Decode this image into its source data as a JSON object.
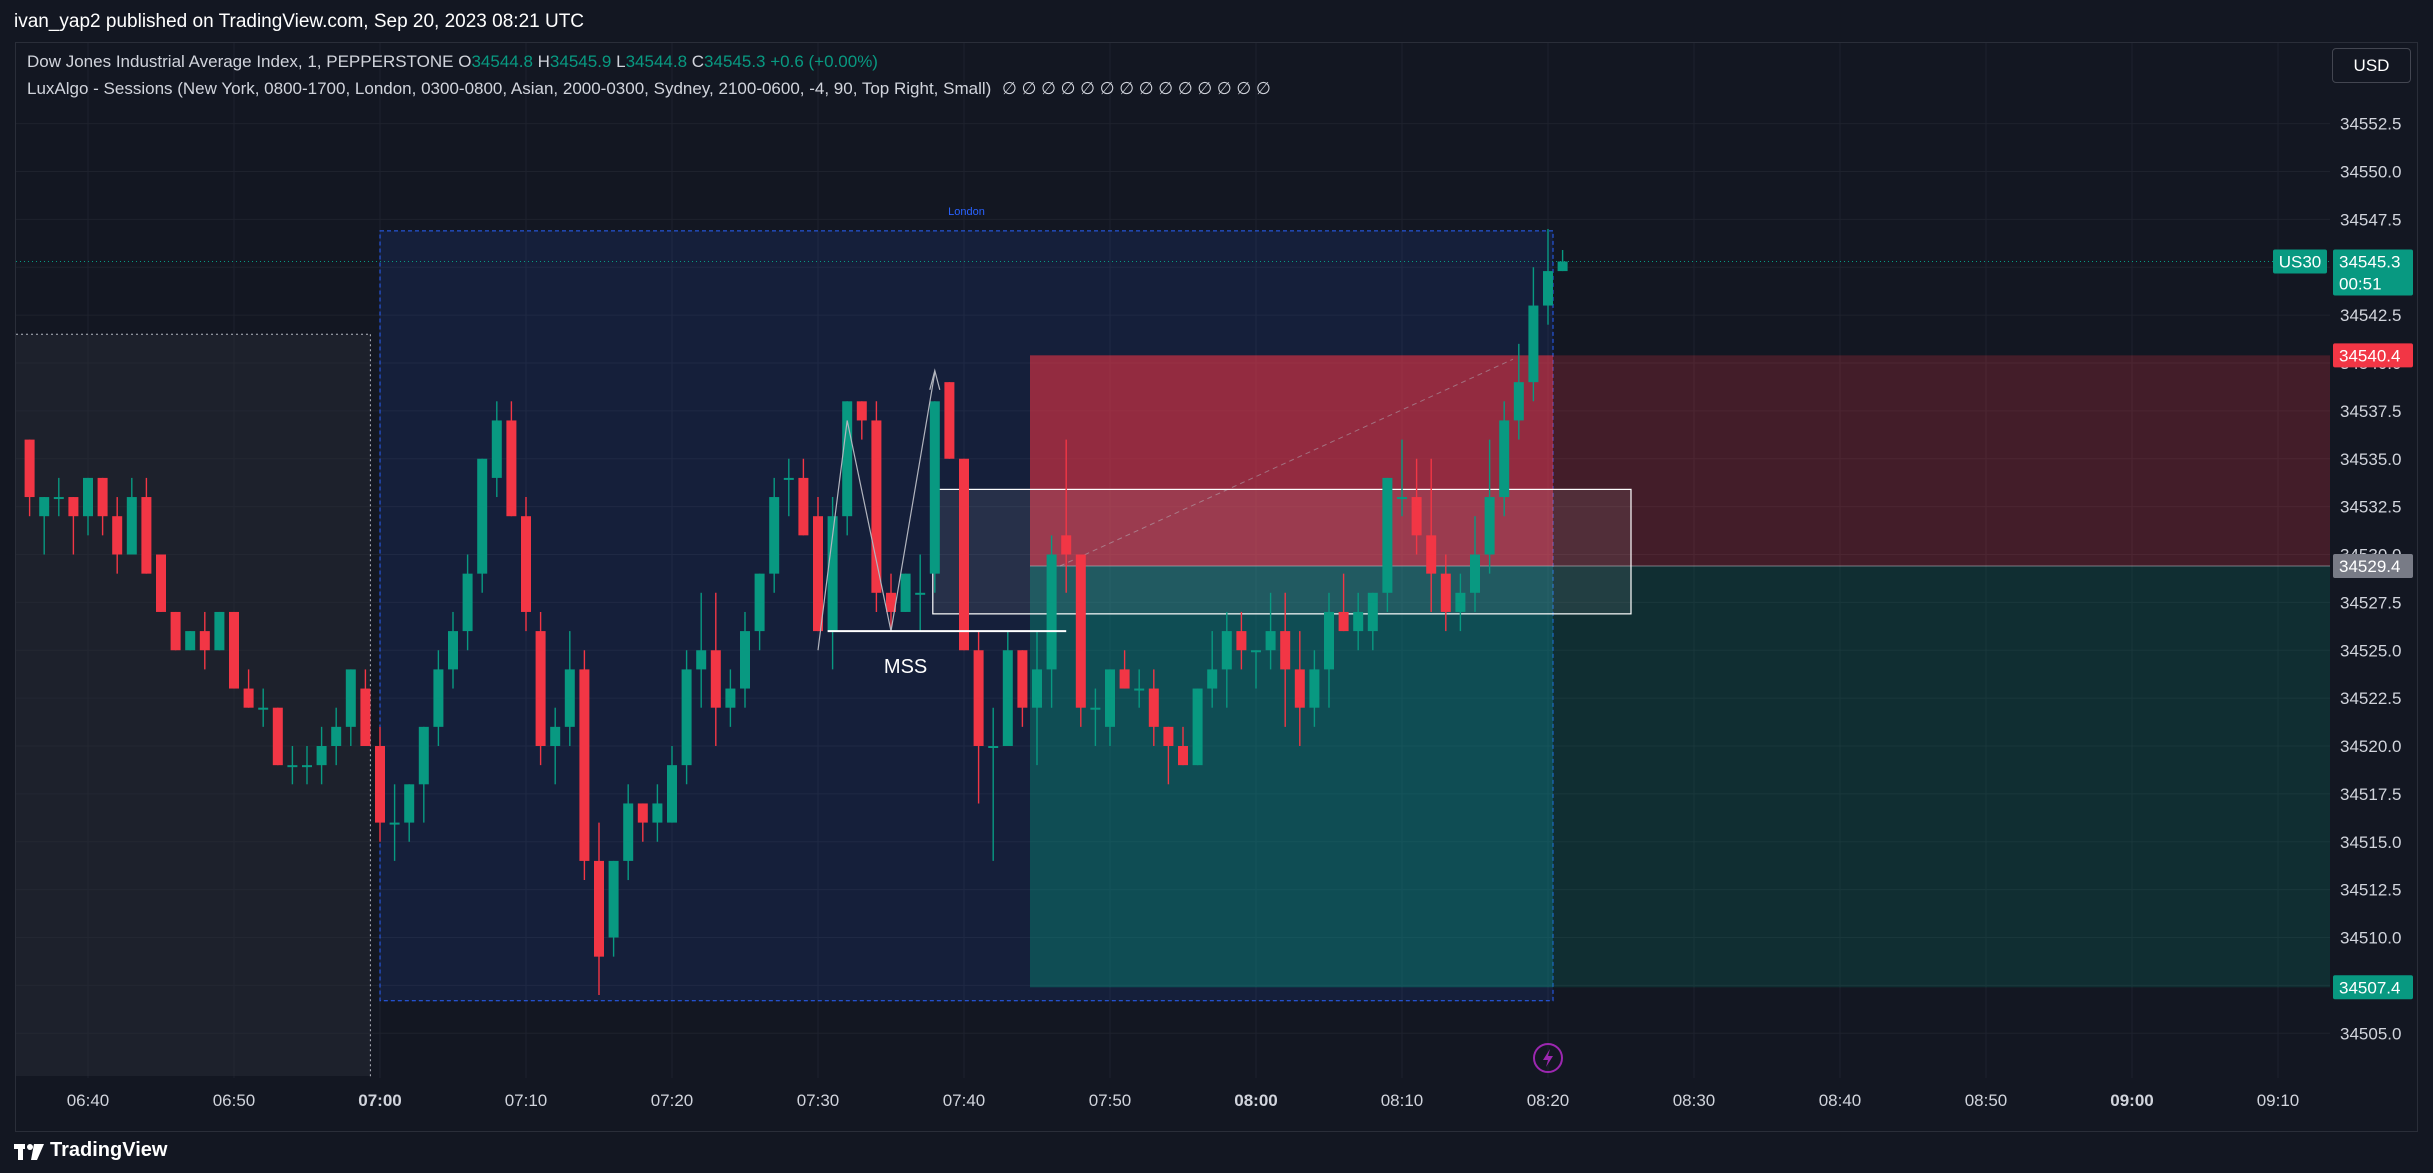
{
  "header": {
    "published": "ivan_yap2 published on TradingView.com, Sep 20, 2023 08:21 UTC"
  },
  "legend": {
    "symbol": "Dow Jones Industrial Average Index, 1, PEPPERSTONE",
    "open_label": "O",
    "open": "34544.8",
    "high_label": "H",
    "high": "34545.9",
    "low_label": "L",
    "low": "34544.8",
    "close_label": "C",
    "close": "34545.3",
    "change": "+0.6 (+0.00%)",
    "indicator": "LuxAlgo - Sessions (New York, 0800-1700, London, 0300-0800, Asian, 2000-0300, Sydney, 2100-0600, -4, 90, Top Right, Small)",
    "indicator_values": "∅ ∅ ∅ ∅ ∅ ∅ ∅ ∅ ∅ ∅ ∅ ∅ ∅ ∅"
  },
  "currency_button": "USD",
  "footer": {
    "brand": "TradingView"
  },
  "colors": {
    "background": "#131722",
    "up": "#089981",
    "down": "#f23645",
    "session": "#2962ff",
    "grid": "#1e222d"
  },
  "chart_data": {
    "type": "candlestick",
    "x_ticks": [
      "06:40",
      "06:50",
      "07:00",
      "07:10",
      "07:20",
      "07:30",
      "07:40",
      "07:50",
      "08:00",
      "08:10",
      "08:20",
      "08:30",
      "08:40",
      "08:50",
      "09:00",
      "09:10"
    ],
    "y_ticks": [
      34552.5,
      34550.0,
      34547.5,
      34545.0,
      34542.5,
      34540.0,
      34537.5,
      34535.0,
      34532.5,
      34530.0,
      34527.5,
      34525.0,
      34522.5,
      34520.0,
      34517.5,
      34515.0,
      34512.5,
      34510.0,
      34507.5,
      34505.0
    ],
    "ylim": [
      34502.6,
      34555.9
    ],
    "session_label": "London",
    "annotation": "MSS",
    "price_labels": [
      {
        "text": "US30",
        "value": "34545.3",
        "sub": "00:51",
        "color": "#089981"
      },
      {
        "value": "34540.4",
        "color": "#f23645"
      },
      {
        "value": "34529.4",
        "color": "#787b86"
      },
      {
        "value": "34507.4",
        "color": "#089981"
      }
    ],
    "position": {
      "stop": 34540.4,
      "entry": 34529.4,
      "target": 34507.4,
      "start": "07:45",
      "end": "08:20"
    },
    "zone": {
      "from": "07:38",
      "to": "08:25",
      "high": 34533.4,
      "low": 34526.9
    },
    "candles": [
      [
        "06:36",
        34536,
        34536,
        34532,
        34533
      ],
      [
        "06:37",
        34532,
        34533,
        34530,
        34533
      ],
      [
        "06:38",
        34533,
        34534,
        34532,
        34533
      ],
      [
        "06:39",
        34533,
        34533,
        34530,
        34532
      ],
      [
        "06:40",
        34532,
        34534,
        34531,
        34534
      ],
      [
        "06:41",
        34534,
        34534,
        34531,
        34532
      ],
      [
        "06:42",
        34532,
        34533,
        34529,
        34530
      ],
      [
        "06:43",
        34530,
        34534,
        34530,
        34533
      ],
      [
        "06:44",
        34533,
        34534,
        34529,
        34529
      ],
      [
        "06:45",
        34530,
        34530,
        34527,
        34527
      ],
      [
        "06:46",
        34527,
        34527,
        34525,
        34525
      ],
      [
        "06:47",
        34525,
        34526,
        34525,
        34526
      ],
      [
        "06:48",
        34526,
        34527,
        34524,
        34525
      ],
      [
        "06:49",
        34525,
        34527,
        34525,
        34527
      ],
      [
        "06:50",
        34527,
        34527,
        34523,
        34523
      ],
      [
        "06:51",
        34523,
        34524,
        34522,
        34522
      ],
      [
        "06:52",
        34522,
        34523,
        34521,
        34522
      ],
      [
        "06:53",
        34522,
        34522,
        34519,
        34519
      ],
      [
        "06:54",
        34519,
        34520,
        34518,
        34519
      ],
      [
        "06:55",
        34519,
        34520,
        34518,
        34519
      ],
      [
        "06:56",
        34519,
        34521,
        34518,
        34520
      ],
      [
        "06:57",
        34520,
        34522,
        34519,
        34521
      ],
      [
        "06:58",
        34521,
        34524,
        34520,
        34524
      ],
      [
        "06:59",
        34523,
        34524,
        34520,
        34520
      ],
      [
        "07:00",
        34520,
        34521,
        34515,
        34516
      ],
      [
        "07:01",
        34516,
        34518,
        34514,
        34516
      ],
      [
        "07:02",
        34516,
        34518,
        34515,
        34518
      ],
      [
        "07:03",
        34518,
        34521,
        34516,
        34521
      ],
      [
        "07:04",
        34521,
        34525,
        34520,
        34524
      ],
      [
        "07:05",
        34524,
        34527,
        34523,
        34526
      ],
      [
        "07:06",
        34526,
        34530,
        34525,
        34529
      ],
      [
        "07:07",
        34529,
        34535,
        34528,
        34535
      ],
      [
        "07:08",
        34534,
        34538,
        34533,
        34537
      ],
      [
        "07:09",
        34537,
        34538,
        34532,
        34532
      ],
      [
        "07:10",
        34532,
        34533,
        34526,
        34527
      ],
      [
        "07:11",
        34526,
        34527,
        34519,
        34520
      ],
      [
        "07:12",
        34520,
        34522,
        34518,
        34521
      ],
      [
        "07:13",
        34521,
        34526,
        34520,
        34524
      ],
      [
        "07:14",
        34524,
        34525,
        34513,
        34514
      ],
      [
        "07:15",
        34514,
        34516,
        34507,
        34509
      ],
      [
        "07:16",
        34510,
        34514,
        34509,
        34514
      ],
      [
        "07:17",
        34514,
        34518,
        34513,
        34517
      ],
      [
        "07:18",
        34517,
        34517,
        34515,
        34516
      ],
      [
        "07:19",
        34516,
        34518,
        34515,
        34517
      ],
      [
        "07:20",
        34516,
        34520,
        34516,
        34519
      ],
      [
        "07:21",
        34519,
        34525,
        34518,
        34524
      ],
      [
        "07:22",
        34524,
        34528,
        34522,
        34525
      ],
      [
        "07:23",
        34525,
        34528,
        34520,
        34522
      ],
      [
        "07:24",
        34522,
        34524,
        34521,
        34523
      ],
      [
        "07:25",
        34523,
        34527,
        34522,
        34526
      ],
      [
        "07:26",
        34526,
        34529,
        34525,
        34529
      ],
      [
        "07:27",
        34529,
        34534,
        34528,
        34533
      ],
      [
        "07:28",
        34534,
        34535,
        34532,
        34534
      ],
      [
        "07:29",
        34534,
        34535,
        34531,
        34531
      ],
      [
        "07:30",
        34532,
        34533,
        34526,
        34526
      ],
      [
        "07:31",
        34526,
        34533,
        34524,
        34532
      ],
      [
        "07:32",
        34532,
        34538,
        34531,
        34538
      ],
      [
        "07:33",
        34538,
        34538,
        34536,
        34537
      ],
      [
        "07:34",
        34537,
        34538,
        34527,
        34528
      ],
      [
        "07:35",
        34528,
        34529,
        34526,
        34527
      ],
      [
        "07:36",
        34527,
        34529,
        34527,
        34529
      ],
      [
        "07:37",
        34528,
        34530,
        34526,
        34528
      ],
      [
        "07:38",
        34529,
        34538,
        34528,
        34538
      ],
      [
        "07:39",
        34539,
        34539,
        34535,
        34535
      ],
      [
        "07:40",
        34535,
        34535,
        34525,
        34525
      ],
      [
        "07:41",
        34525,
        34526,
        34517,
        34520
      ],
      [
        "07:42",
        34520,
        34522,
        34514,
        34520
      ],
      [
        "07:43",
        34520,
        34526,
        34520,
        34525
      ],
      [
        "07:44",
        34525,
        34525,
        34521,
        34522
      ],
      [
        "07:45",
        34522,
        34526,
        34519,
        34524
      ],
      [
        "07:46",
        34524,
        34531,
        34522,
        34530
      ],
      [
        "07:47",
        34531,
        34536,
        34528,
        34530
      ],
      [
        "07:48",
        34530,
        34530,
        34521,
        34522
      ],
      [
        "07:49",
        34522,
        34523,
        34520,
        34522
      ],
      [
        "07:50",
        34521,
        34524,
        34520,
        34524
      ],
      [
        "07:51",
        34524,
        34525,
        34523,
        34523
      ],
      [
        "07:52",
        34523,
        34524,
        34522,
        34523
      ],
      [
        "07:53",
        34523,
        34524,
        34520,
        34521
      ],
      [
        "07:54",
        34521,
        34521,
        34518,
        34520
      ],
      [
        "07:55",
        34520,
        34521,
        34519,
        34519
      ],
      [
        "07:56",
        34519,
        34523,
        34519,
        34523
      ],
      [
        "07:57",
        34523,
        34526,
        34522,
        34524
      ],
      [
        "07:58",
        34524,
        34527,
        34522,
        34526
      ],
      [
        "07:59",
        34526,
        34527,
        34524,
        34525
      ],
      [
        "08:00",
        34525,
        34525,
        34523,
        34525
      ],
      [
        "08:01",
        34525,
        34528,
        34524,
        34526
      ],
      [
        "08:02",
        34526,
        34528,
        34521,
        34524
      ],
      [
        "08:03",
        34524,
        34526,
        34520,
        34522
      ],
      [
        "08:04",
        34522,
        34525,
        34521,
        34524
      ],
      [
        "08:05",
        34524,
        34528,
        34522,
        34527
      ],
      [
        "08:06",
        34527,
        34529,
        34526,
        34526
      ],
      [
        "08:07",
        34526,
        34528,
        34525,
        34527
      ],
      [
        "08:08",
        34526,
        34528,
        34525,
        34528
      ],
      [
        "08:09",
        34528,
        34534,
        34527,
        34534
      ],
      [
        "08:10",
        34533,
        34536,
        34532,
        34533
      ],
      [
        "08:11",
        34533,
        34535,
        34530,
        34531
      ],
      [
        "08:12",
        34531,
        34535,
        34527,
        34529
      ],
      [
        "08:13",
        34529,
        34530,
        34526,
        34527
      ],
      [
        "08:14",
        34527,
        34529,
        34526,
        34528
      ],
      [
        "08:15",
        34528,
        34532,
        34527,
        34530
      ],
      [
        "08:16",
        34530,
        34536,
        34529,
        34533
      ],
      [
        "08:17",
        34533,
        34538,
        34532,
        34537
      ],
      [
        "08:18",
        34537,
        34541,
        34536,
        34539
      ],
      [
        "08:19",
        34539,
        34545,
        34538,
        34543
      ],
      [
        "08:20",
        34543,
        34547,
        34542,
        34544.8
      ],
      [
        "08:21",
        34544.8,
        34545.9,
        34544.8,
        34545.3
      ]
    ]
  }
}
